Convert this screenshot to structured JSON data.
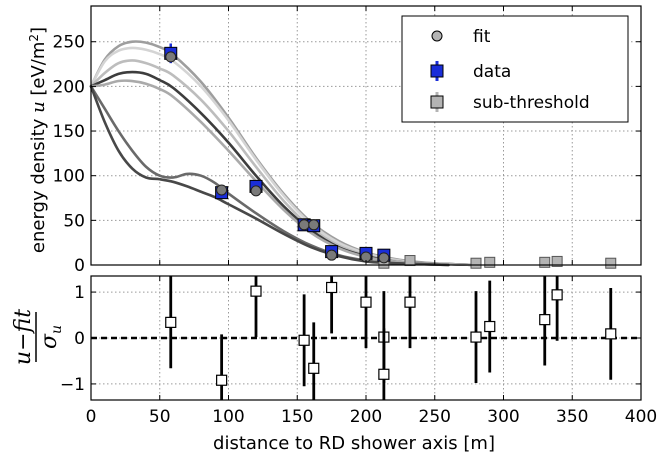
{
  "chart_data": [
    {
      "type": "scatter",
      "panel": "top",
      "ylabel_text": "energy density ",
      "ylabel_var": "u",
      "ylabel_unit_open": " [eV/m",
      "ylabel_unit_sup": "2",
      "ylabel_unit_close": "]",
      "xlim": [
        0,
        400
      ],
      "ylim": [
        0,
        290
      ],
      "xticks": [
        0,
        50,
        100,
        150,
        200,
        250,
        300,
        350,
        400
      ],
      "yticks": [
        0,
        50,
        100,
        150,
        200,
        250
      ],
      "grid": true,
      "legend_position": "top-right",
      "legend": [
        {
          "label": "fit",
          "marker": "circle",
          "color": "#b4b4b4"
        },
        {
          "label": "data",
          "marker": "square",
          "color": "#1a2ed9"
        },
        {
          "label": "sub-threshold",
          "marker": "square",
          "color": "#b4b4b4"
        }
      ],
      "curves": [
        {
          "color": "#9e9e9e",
          "x": [
            0,
            10,
            20,
            30,
            40,
            50,
            60,
            80,
            100,
            120,
            140,
            160,
            180,
            200,
            220,
            240,
            260,
            280
          ],
          "y": [
            200,
            230,
            245,
            250,
            249,
            244,
            235,
            205,
            165,
            120,
            80,
            48,
            27,
            14,
            7,
            3,
            1,
            0
          ]
        },
        {
          "color": "#d4d4d4",
          "x": [
            0,
            10,
            20,
            30,
            40,
            50,
            60,
            80,
            100,
            120,
            140,
            160,
            180,
            200,
            220,
            240,
            260,
            280
          ],
          "y": [
            200,
            228,
            240,
            243,
            241,
            236,
            228,
            200,
            162,
            118,
            78,
            46,
            25,
            13,
            6,
            2,
            1,
            0
          ]
        },
        {
          "color": "#bdbdbd",
          "x": [
            0,
            10,
            20,
            30,
            40,
            50,
            60,
            80,
            100,
            120,
            140,
            160,
            180,
            200,
            220,
            240,
            260,
            280
          ],
          "y": [
            200,
            215,
            226,
            229,
            226,
            220,
            212,
            185,
            150,
            110,
            72,
            42,
            22,
            11,
            5,
            2,
            1,
            0
          ]
        },
        {
          "color": "#3d3d3d",
          "x": [
            0,
            10,
            20,
            30,
            40,
            50,
            60,
            80,
            100,
            120,
            140,
            160,
            180,
            200,
            220,
            240,
            260,
            280
          ],
          "y": [
            200,
            207,
            214,
            216,
            214,
            207,
            198,
            170,
            137,
            100,
            66,
            39,
            20,
            10,
            4,
            2,
            1,
            0
          ]
        },
        {
          "color": "#aaaaaa",
          "x": [
            0,
            10,
            20,
            30,
            40,
            50,
            60,
            80,
            100,
            120,
            140,
            160,
            180,
            200,
            220,
            240,
            260,
            280
          ],
          "y": [
            200,
            202,
            206,
            206,
            203,
            197,
            188,
            160,
            128,
            94,
            62,
            36,
            19,
            9,
            4,
            2,
            1,
            0
          ]
        },
        {
          "color": "#6a6a6a",
          "x": [
            0,
            10,
            20,
            30,
            40,
            50,
            60,
            70,
            80,
            90,
            100,
            120,
            140,
            160,
            180,
            200,
            220,
            240,
            260
          ],
          "y": [
            200,
            175,
            150,
            128,
            110,
            100,
            98,
            102,
            100,
            92,
            80,
            58,
            38,
            22,
            11,
            5,
            2,
            1,
            0
          ]
        },
        {
          "color": "#484848",
          "x": [
            0,
            10,
            20,
            30,
            40,
            50,
            60,
            70,
            80,
            90,
            100,
            120,
            140,
            160,
            180,
            200,
            220,
            240,
            260
          ],
          "y": [
            200,
            160,
            128,
            108,
            98,
            96,
            93,
            88,
            82,
            76,
            68,
            52,
            35,
            20,
            10,
            4,
            2,
            1,
            0
          ]
        }
      ],
      "fit_points": {
        "x": [
          58,
          95,
          120,
          155,
          162,
          175,
          200,
          213
        ],
        "y": [
          233,
          84,
          83,
          45,
          45,
          11,
          9,
          8
        ]
      },
      "data_points": {
        "x": [
          58,
          95,
          120,
          155,
          162,
          175,
          200,
          213
        ],
        "y": [
          237,
          81,
          88,
          45,
          44,
          15,
          13,
          11
        ],
        "err": [
          11,
          4,
          4,
          3,
          3,
          3,
          3,
          3
        ]
      },
      "subthreshold_points": {
        "x": [
          213,
          232,
          280,
          290,
          330,
          339,
          378
        ],
        "y": [
          2,
          5,
          2,
          3,
          3,
          4,
          2
        ],
        "err": [
          2,
          2,
          1,
          1,
          1,
          1,
          1
        ]
      }
    },
    {
      "type": "scatter",
      "panel": "bottom",
      "xlabel": "distance to RD shower axis [m]",
      "ylabel_numerator": "u−fit",
      "ylabel_denominator": "σ",
      "ylabel_denominator_sub": "u",
      "xlim": [
        0,
        400
      ],
      "ylim": [
        -1.35,
        1.35
      ],
      "xticks": [
        0,
        50,
        100,
        150,
        200,
        250,
        300,
        350,
        400
      ],
      "yticks": [
        -1,
        0,
        1
      ],
      "ytick_labels": [
        "−1",
        "0",
        "1"
      ],
      "grid": true,
      "reference_line": 0,
      "points": {
        "x": [
          58,
          95,
          120,
          155,
          162,
          175,
          200,
          213,
          213,
          232,
          280,
          290,
          330,
          339,
          378
        ],
        "y": [
          0.34,
          -0.92,
          1.02,
          -0.05,
          -0.66,
          1.1,
          0.78,
          0.02,
          -0.79,
          0.78,
          0.02,
          0.25,
          0.4,
          0.94,
          0.09
        ],
        "err": [
          1,
          1,
          1,
          1,
          1,
          1,
          1,
          1,
          1,
          1,
          1,
          1,
          1,
          1,
          1
        ]
      }
    }
  ]
}
